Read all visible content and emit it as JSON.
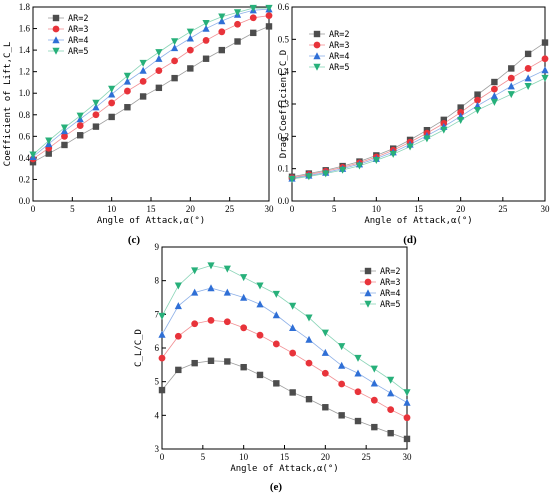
{
  "colors": {
    "AR=2": "#4d4d4d",
    "AR=3": "#e8333a",
    "AR=4": "#2f6fd6",
    "AR=5": "#27b07a"
  },
  "chart_data": [
    {
      "type": "line",
      "panel_label": "(c)",
      "xlabel": "Angle of Attack,α(°)",
      "ylabel": "Coefficient of Lift,C_L",
      "xlim": [
        0,
        30
      ],
      "ylim": [
        0.0,
        1.8
      ],
      "xticks": [
        0,
        5,
        10,
        15,
        20,
        25,
        30
      ],
      "yticks": [
        0.0,
        0.2,
        0.4,
        0.6,
        0.8,
        1.0,
        1.2,
        1.4,
        1.6,
        1.8
      ],
      "legend_position": "top-left",
      "x": [
        0,
        2,
        4,
        6,
        8,
        10,
        12,
        14,
        16,
        18,
        20,
        22,
        24,
        26,
        28,
        30
      ],
      "series": [
        {
          "name": "AR=2",
          "marker": "square",
          "values": [
            0.36,
            0.44,
            0.52,
            0.61,
            0.69,
            0.78,
            0.87,
            0.97,
            1.05,
            1.14,
            1.23,
            1.32,
            1.4,
            1.48,
            1.56,
            1.62
          ]
        },
        {
          "name": "AR=3",
          "marker": "circle",
          "values": [
            0.39,
            0.49,
            0.6,
            0.7,
            0.8,
            0.91,
            1.02,
            1.11,
            1.21,
            1.3,
            1.4,
            1.49,
            1.57,
            1.64,
            1.7,
            1.72
          ]
        },
        {
          "name": "AR=4",
          "marker": "triangle-up",
          "values": [
            0.41,
            0.53,
            0.65,
            0.76,
            0.87,
            0.99,
            1.11,
            1.21,
            1.32,
            1.42,
            1.51,
            1.6,
            1.67,
            1.73,
            1.77,
            1.78
          ]
        },
        {
          "name": "AR=5",
          "marker": "triangle-down",
          "values": [
            0.43,
            0.56,
            0.68,
            0.79,
            0.91,
            1.04,
            1.16,
            1.28,
            1.38,
            1.48,
            1.57,
            1.65,
            1.71,
            1.75,
            1.79,
            1.79
          ]
        }
      ]
    },
    {
      "type": "line",
      "panel_label": "(d)",
      "xlabel": "Angle of Attack,α(°)",
      "ylabel": "Drag Coefficient,C_D",
      "xlim": [
        0,
        30
      ],
      "ylim": [
        0.0,
        0.6
      ],
      "xticks": [
        0,
        5,
        10,
        15,
        20,
        25,
        30
      ],
      "yticks": [
        0.0,
        0.1,
        0.2,
        0.3,
        0.4,
        0.5,
        0.6
      ],
      "legend_position": "top-left",
      "x": [
        0,
        2,
        4,
        6,
        8,
        10,
        12,
        14,
        16,
        18,
        20,
        22,
        24,
        26,
        28,
        30
      ],
      "series": [
        {
          "name": "AR=2",
          "marker": "square",
          "values": [
            0.075,
            0.085,
            0.095,
            0.108,
            0.122,
            0.141,
            0.162,
            0.189,
            0.219,
            0.251,
            0.289,
            0.329,
            0.368,
            0.41,
            0.455,
            0.49
          ]
        },
        {
          "name": "AR=3",
          "marker": "circle",
          "values": [
            0.072,
            0.082,
            0.092,
            0.104,
            0.118,
            0.136,
            0.157,
            0.182,
            0.21,
            0.24,
            0.274,
            0.312,
            0.346,
            0.38,
            0.41,
            0.44
          ]
        },
        {
          "name": "AR=4",
          "marker": "triangle-up",
          "values": [
            0.07,
            0.079,
            0.088,
            0.1,
            0.114,
            0.131,
            0.151,
            0.175,
            0.202,
            0.23,
            0.262,
            0.295,
            0.325,
            0.355,
            0.38,
            0.405
          ]
        },
        {
          "name": "AR=5",
          "marker": "triangle-down",
          "values": [
            0.068,
            0.076,
            0.085,
            0.096,
            0.109,
            0.126,
            0.145,
            0.168,
            0.193,
            0.22,
            0.25,
            0.281,
            0.306,
            0.33,
            0.355,
            0.38
          ]
        }
      ]
    },
    {
      "type": "line",
      "panel_label": "(e)",
      "xlabel": "Angle of Attack,α(°)",
      "ylabel": "C_L/C_D",
      "xlim": [
        0,
        30
      ],
      "ylim": [
        3,
        9
      ],
      "xticks": [
        0,
        5,
        10,
        15,
        20,
        25,
        30
      ],
      "yticks": [
        3,
        4,
        5,
        6,
        7,
        8,
        9
      ],
      "legend_position": "top-right",
      "x": [
        0,
        2,
        4,
        6,
        8,
        10,
        12,
        14,
        16,
        18,
        20,
        22,
        24,
        26,
        28,
        30
      ],
      "series": [
        {
          "name": "AR=2",
          "marker": "square",
          "values": [
            4.75,
            5.35,
            5.55,
            5.62,
            5.6,
            5.43,
            5.2,
            4.95,
            4.68,
            4.48,
            4.24,
            4.0,
            3.83,
            3.65,
            3.47,
            3.3
          ]
        },
        {
          "name": "AR=3",
          "marker": "circle",
          "values": [
            5.7,
            6.35,
            6.72,
            6.82,
            6.78,
            6.6,
            6.38,
            6.12,
            5.85,
            5.55,
            5.25,
            4.93,
            4.7,
            4.45,
            4.17,
            3.93
          ]
        },
        {
          "name": "AR=4",
          "marker": "triangle-up",
          "values": [
            6.4,
            7.25,
            7.65,
            7.78,
            7.65,
            7.5,
            7.3,
            6.98,
            6.6,
            6.25,
            5.86,
            5.48,
            5.25,
            4.95,
            4.66,
            4.38
          ]
        },
        {
          "name": "AR=5",
          "marker": "triangle-down",
          "values": [
            6.95,
            7.85,
            8.3,
            8.45,
            8.35,
            8.1,
            7.85,
            7.6,
            7.25,
            6.9,
            6.45,
            6.05,
            5.7,
            5.38,
            5.05,
            4.68
          ]
        }
      ]
    }
  ]
}
